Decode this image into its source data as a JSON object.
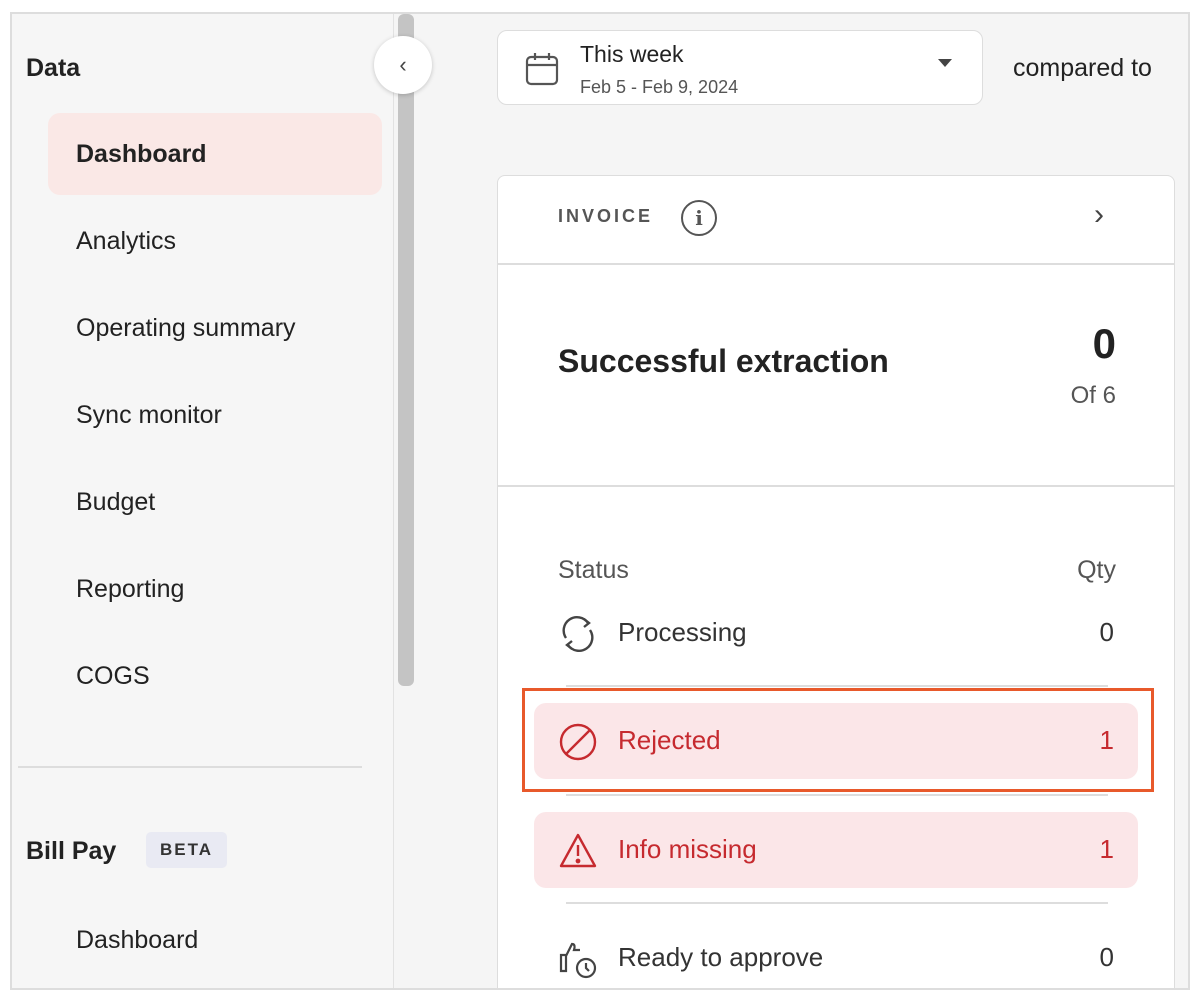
{
  "sidebar": {
    "section_data": "Data",
    "items": [
      {
        "label": "Dashboard",
        "active": true
      },
      {
        "label": "Analytics"
      },
      {
        "label": "Operating summary"
      },
      {
        "label": "Sync monitor"
      },
      {
        "label": "Budget"
      },
      {
        "label": "Reporting"
      },
      {
        "label": "COGS"
      }
    ],
    "section_billpay": "Bill Pay",
    "billpay_badge": "BETA",
    "billpay_items": [
      {
        "label": "Dashboard"
      }
    ]
  },
  "date_picker": {
    "label": "This week",
    "range": "Feb 5 - Feb 9, 2024",
    "icon": "calendar-icon"
  },
  "compared_to": "compared to",
  "card": {
    "title": "INVOICE",
    "summary_label": "Successful extraction",
    "summary_value": "0",
    "summary_total": "Of 6",
    "col_status": "Status",
    "col_qty": "Qty",
    "rows": [
      {
        "label": "Processing",
        "qty": "0",
        "icon": "refresh-icon"
      },
      {
        "label": "Rejected",
        "qty": "1",
        "icon": "ban-icon"
      },
      {
        "label": "Info missing",
        "qty": "1",
        "icon": "warning-icon"
      },
      {
        "label": "Ready to approve",
        "qty": "0",
        "icon": "thumbs-up-clock-icon"
      }
    ]
  },
  "colors": {
    "error": "#c62a2f",
    "error_bg": "#fbe6e8",
    "active_bg": "#fae8e6",
    "highlight": "#e8592b"
  }
}
